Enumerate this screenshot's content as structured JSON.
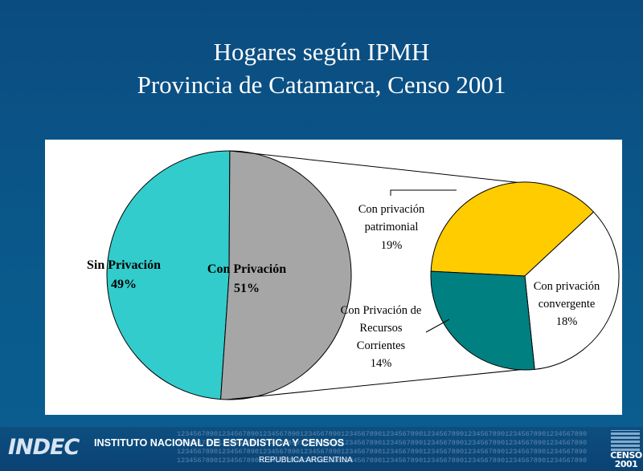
{
  "header": {
    "title_line1": "Hogares según IPMH",
    "title_line2": "Provincia de Catamarca, Censo 2001"
  },
  "chart_data": {
    "type": "pie",
    "title": "Hogares según IPMH Provincia de Catamarca, Censo 2001",
    "main_pie": {
      "slices": [
        {
          "label": "Sin Privación",
          "value": 49,
          "display": "49%",
          "color": "#33cccc"
        },
        {
          "label": "Con Privación",
          "value": 51,
          "display": "51%",
          "color": "#a6a6a6"
        }
      ]
    },
    "breakdown_pie": {
      "parent": "Con Privación",
      "slices": [
        {
          "label": "Con privación patrimonial",
          "value": 19,
          "display": "19%",
          "color": "#ffcc00"
        },
        {
          "label": "Con privación convergente",
          "value": 18,
          "display": "18%",
          "color": "#ffffff"
        },
        {
          "label": "Con Privación de Recursos Corrientes",
          "value": 14,
          "display": "14%",
          "color": "#008080"
        }
      ]
    }
  },
  "labels": {
    "sin_priv": {
      "line1": "Sin Privación",
      "line2": "49%"
    },
    "con_priv": {
      "line1": "Con Privación",
      "line2": "51%"
    },
    "patrimonial": {
      "line1": "Con privación",
      "line2": "patrimonial",
      "line3": "19%"
    },
    "convergente": {
      "line1": "Con privación",
      "line2": "convergente",
      "line3": "18%"
    },
    "recursos": {
      "line1": "Con Privación de",
      "line2": "Recursos",
      "line3": "Corrientes",
      "line4": "14%"
    }
  },
  "footer": {
    "logo_text": "INDEC",
    "institution": "INSTITUTO NACIONAL DE ESTADISTICA Y CENSOS",
    "country": "REPUBLICA ARGENTINA",
    "censo_word": "CENSO",
    "censo_year": "2001",
    "digits_row": "1234567890123456789012345678901234567890123456789012345678901234567890123456789012345678901234567890"
  }
}
